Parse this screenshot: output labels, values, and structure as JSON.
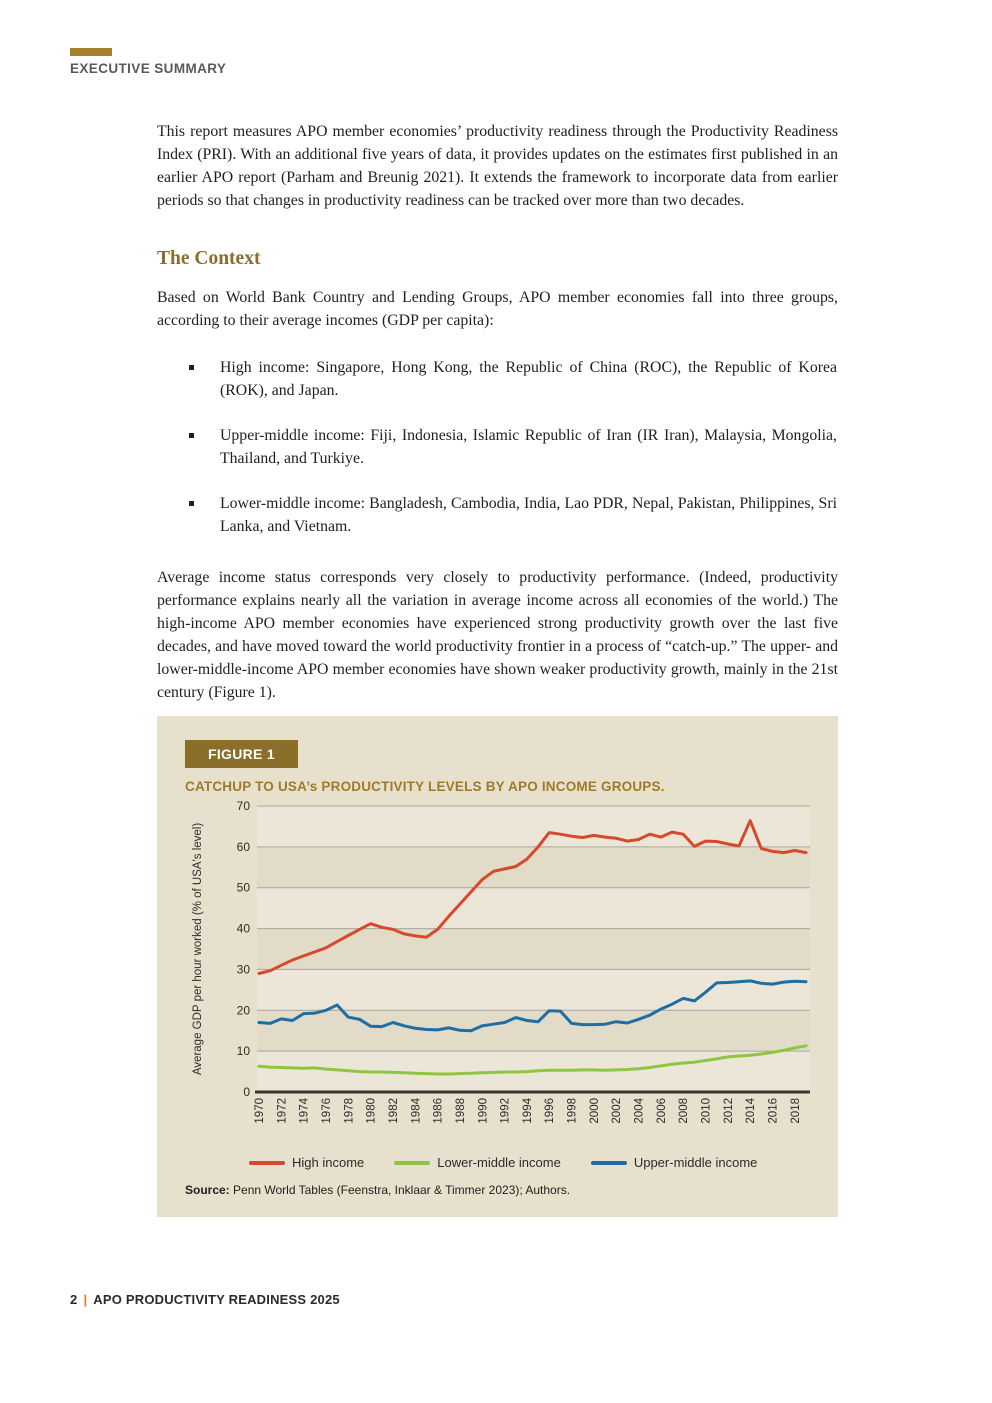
{
  "page": {
    "eyebrow": "EXECUTIVE SUMMARY",
    "footer": {
      "page_number": "2",
      "separator": "|",
      "title": "APO PRODUCTIVITY READINESS 2025"
    }
  },
  "intro_paragraph": "This report measures APO member economies’ productivity readiness through the Productivity Readiness Index (PRI). With an additional five years of data, it provides updates on the estimates first published in an earlier APO report (Parham and Breunig 2021). It extends the framework to incorporate data from earlier periods so that changes in productivity readiness can be tracked over more than two decades.",
  "section": {
    "heading": "The Context",
    "lead_paragraph": "Based on World Bank Country and Lending Groups, APO member economies fall into three groups, according to their average incomes (GDP per capita):",
    "bullets": [
      "High income: Singapore, Hong Kong, the Republic of China (ROC), the Republic of Korea (ROK), and Japan.",
      "Upper-middle income: Fiji, Indonesia, Islamic Republic of Iran (IR Iran), Malaysia, Mongolia, Thailand, and Turkiye.",
      "Lower-middle income: Bangladesh, Cambodia, India, Lao PDR, Nepal, Pakistan, Philippines, Sri Lanka, and Vietnam."
    ],
    "closing_paragraph": "Average income status corresponds very closely to productivity performance. (Indeed, productivity performance explains nearly all the variation in average income across all economies of the world.) The high-income APO member economies have experienced strong productivity growth over the last five decades, and have moved toward the world productivity frontier in a process of “catch-up.” The upper- and lower-middle-income APO member economies have shown weaker productivity growth, mainly in the 21st century (Figure 1).",
    "note": ""
  },
  "figure": {
    "label": "FIGURE 1",
    "title": "CATCHUP TO USA’s PRODUCTIVITY LEVELS BY APO INCOME GROUPS.",
    "source_label": "Source:",
    "source_text": " Penn World Tables (Feenstra, Inklaar & Timmer 2023); Authors."
  },
  "colors": {
    "accent_gold": "#a5802d",
    "figure_label_bg": "#8c6e2b",
    "figure_title": "#a07b27",
    "panel_bg": "#e7e0cd",
    "footer_separator": "#e87a25",
    "high_income": "#d6492a",
    "lower_middle_income": "#8ec63f",
    "upper_middle_income": "#1c6ea4"
  },
  "chart_data": {
    "type": "line",
    "title": "CATCHUP TO USA’s PRODUCTIVITY LEVELS BY APO INCOME GROUPS.",
    "xlabel": "",
    "ylabel": "Average GDP per hour worked (% of USA's level)",
    "ylim": [
      0,
      70
    ],
    "ytick_interval": 10,
    "grid": true,
    "legend_position": "bottom",
    "plot_bands": [
      "#ece6d8",
      "#e2dbc8"
    ],
    "x": [
      1970,
      1971,
      1972,
      1973,
      1974,
      1975,
      1976,
      1977,
      1978,
      1979,
      1980,
      1981,
      1982,
      1983,
      1984,
      1985,
      1986,
      1987,
      1988,
      1989,
      1990,
      1991,
      1992,
      1993,
      1994,
      1995,
      1996,
      1997,
      1998,
      1999,
      2000,
      2001,
      2002,
      2003,
      2004,
      2005,
      2006,
      2007,
      2008,
      2009,
      2010,
      2011,
      2012,
      2013,
      2014,
      2015,
      2016,
      2017,
      2018,
      2019
    ],
    "xtick_labels": [
      "1970",
      "1972",
      "1974",
      "1976",
      "1978",
      "1980",
      "1982",
      "1984",
      "1986",
      "1988",
      "1990",
      "1992",
      "1994",
      "1996",
      "1998",
      "2000",
      "2002",
      "2004",
      "2006",
      "2008",
      "2010",
      "2012",
      "2014",
      "2016",
      "2018"
    ],
    "series": [
      {
        "name": "High income",
        "color": "#d6492a",
        "values": [
          29.0,
          29.7,
          31.0,
          32.3,
          33.3,
          34.3,
          35.3,
          36.8,
          38.3,
          39.8,
          41.2,
          40.3,
          39.8,
          38.7,
          38.2,
          37.9,
          39.8,
          43.0,
          46.0,
          49.0,
          52.0,
          54.0,
          54.6,
          55.2,
          57.0,
          60.0,
          63.5,
          63.1,
          62.6,
          62.3,
          62.8,
          62.4,
          62.1,
          61.4,
          61.8,
          63.1,
          62.4,
          63.6,
          63.1,
          60.1,
          61.4,
          61.3,
          60.7,
          60.2,
          66.4,
          59.6,
          58.9,
          58.6,
          59.1,
          58.6
        ]
      },
      {
        "name": "Lower-middle income",
        "color": "#8ec63f",
        "values": [
          6.3,
          6.1,
          6.0,
          5.9,
          5.8,
          5.9,
          5.6,
          5.4,
          5.2,
          5.0,
          4.9,
          4.9,
          4.8,
          4.7,
          4.6,
          4.5,
          4.4,
          4.4,
          4.5,
          4.6,
          4.7,
          4.8,
          4.9,
          4.9,
          5.0,
          5.2,
          5.3,
          5.3,
          5.3,
          5.4,
          5.4,
          5.3,
          5.4,
          5.5,
          5.7,
          6.0,
          6.4,
          6.8,
          7.1,
          7.3,
          7.7,
          8.1,
          8.6,
          8.8,
          9.0,
          9.3,
          9.7,
          10.2,
          10.8,
          11.3
        ]
      },
      {
        "name": "Upper-middle income",
        "color": "#1c6ea4",
        "values": [
          17.0,
          16.8,
          17.9,
          17.5,
          19.2,
          19.3,
          20.0,
          21.3,
          18.3,
          17.8,
          16.1,
          16.0,
          17.0,
          16.2,
          15.6,
          15.3,
          15.2,
          15.7,
          15.1,
          15.0,
          16.2,
          16.6,
          17.0,
          18.2,
          17.5,
          17.2,
          19.9,
          19.8,
          16.8,
          16.5,
          16.5,
          16.6,
          17.2,
          16.9,
          17.8,
          18.8,
          20.3,
          21.5,
          22.9,
          22.3,
          24.4,
          26.7,
          26.8,
          27.0,
          27.2,
          26.6,
          26.4,
          26.9,
          27.1,
          27.0
        ]
      }
    ],
    "legend_order": [
      0,
      1,
      2
    ]
  }
}
